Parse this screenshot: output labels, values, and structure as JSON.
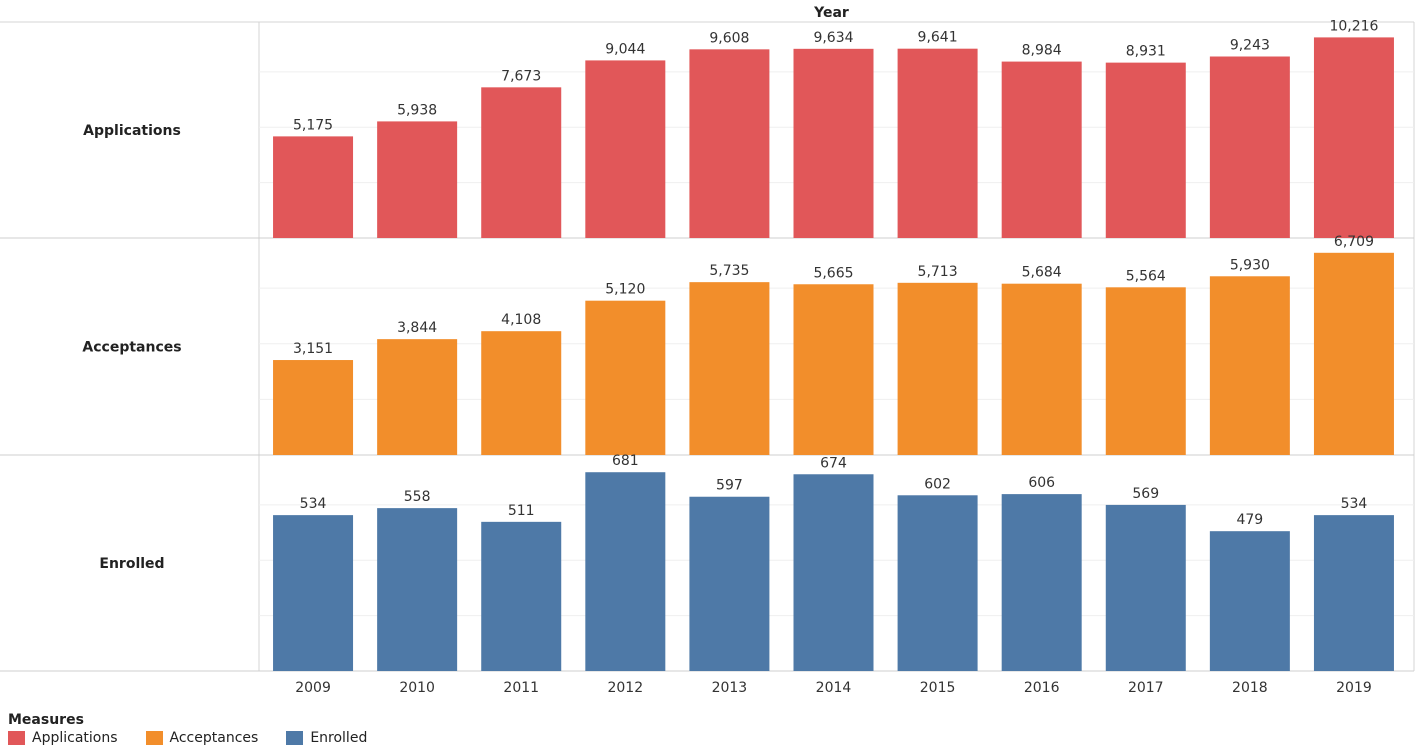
{
  "chart_data": {
    "type": "bar",
    "title": "Year",
    "categories": [
      "2009",
      "2010",
      "2011",
      "2012",
      "2013",
      "2014",
      "2015",
      "2016",
      "2017",
      "2018",
      "2019"
    ],
    "series": [
      {
        "name": "Applications",
        "color": "#e15759",
        "ylim": [
          0,
          11000
        ],
        "values": [
          5175,
          5938,
          7673,
          9044,
          9608,
          9634,
          9641,
          8984,
          8931,
          9243,
          10216
        ],
        "labels": [
          "5,175",
          "5,938",
          "7,673",
          "9,044",
          "9,608",
          "9,634",
          "9,641",
          "8,984",
          "8,931",
          "9,243",
          "10,216"
        ]
      },
      {
        "name": "Acceptances",
        "color": "#f28e2b",
        "ylim": [
          0,
          7200
        ],
        "values": [
          3151,
          3844,
          4108,
          5120,
          5735,
          5665,
          5713,
          5684,
          5564,
          5930,
          6709
        ],
        "labels": [
          "3,151",
          "3,844",
          "4,108",
          "5,120",
          "5,735",
          "5,665",
          "5,713",
          "5,684",
          "5,564",
          "5,930",
          "6,709"
        ]
      },
      {
        "name": "Enrolled",
        "color": "#4e79a7",
        "ylim": [
          0,
          740
        ],
        "values": [
          534,
          558,
          511,
          681,
          597,
          674,
          602,
          606,
          569,
          479,
          534
        ],
        "labels": [
          "534",
          "558",
          "511",
          "681",
          "597",
          "674",
          "602",
          "606",
          "569",
          "479",
          "534"
        ]
      }
    ],
    "legend": {
      "title": "Measures",
      "position": "bottom-left"
    },
    "grid": true
  }
}
